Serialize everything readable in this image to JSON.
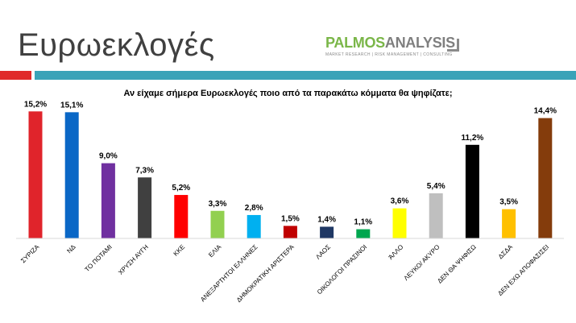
{
  "slide": {
    "title": "Ευρωεκλογές",
    "logo": {
      "name_part1": "PALMOS",
      "name_part2": "ANALYSIS",
      "tagline": "MARKET RESEARCH | RISK MANAGEMENT | CONSULTING"
    },
    "colors": {
      "red_band": "#e02b2b",
      "teal_band": "#3aa3b8"
    }
  },
  "chart_data": {
    "type": "bar",
    "title": "Αν είχαμε σήμερα Ευρωεκλογές ποιο από τα παρακάτω κόμματα θα ψηφίζατε;",
    "categories": [
      "ΣΥΡΙΖΑ",
      "ΝΔ",
      "ΤΟ ΠΟΤΑΜΙ",
      "ΧΡΥΣΗ ΑΥΓΗ",
      "ΚΚΕ",
      "ΕΛΙΑ",
      "ΑΝΕΞΑΡΤΗΤΟΙ ΕΛΛΗΝΕΣ",
      "ΔΗΜΟΚΡΑΤΙΚΗ ΑΡΙΣΤΕΡΑ",
      "ΛΑΟΣ",
      "ΟΙΚΟΛΟΓΟΙ ΠΡΑΣΙΝΟΙ",
      "ΆΛΛΟ",
      "ΛΕΥΚΟ/ ΑΚΥΡΟ",
      "ΔΕΝ ΘΑ ΨΗΦΙΣΩ",
      "ΔΣΔΑ",
      "ΔΕΝ ΕΧΩ ΑΠΟΦΑΣΙΣΕΙ"
    ],
    "values": [
      15.2,
      15.1,
      9.0,
      7.3,
      5.2,
      3.3,
      2.8,
      1.5,
      1.4,
      1.1,
      3.6,
      5.4,
      11.2,
      3.5,
      14.4
    ],
    "value_labels": [
      "15,2%",
      "15,1%",
      "9,0%",
      "7,3%",
      "5,2%",
      "3,3%",
      "2,8%",
      "1,5%",
      "1,4%",
      "1,1%",
      "3,6%",
      "5,4%",
      "11,2%",
      "3,5%",
      "14,4%"
    ],
    "colors": [
      "#e0242b",
      "#0a67c6",
      "#7030a0",
      "#404040",
      "#ff0000",
      "#92d050",
      "#00b0f0",
      "#c00000",
      "#1f3864",
      "#00a64f",
      "#ffff00",
      "#bfbfbf",
      "#000000",
      "#ffc000",
      "#843c0c"
    ],
    "ylim": [
      0,
      16
    ],
    "grid": false,
    "legend": "none"
  }
}
